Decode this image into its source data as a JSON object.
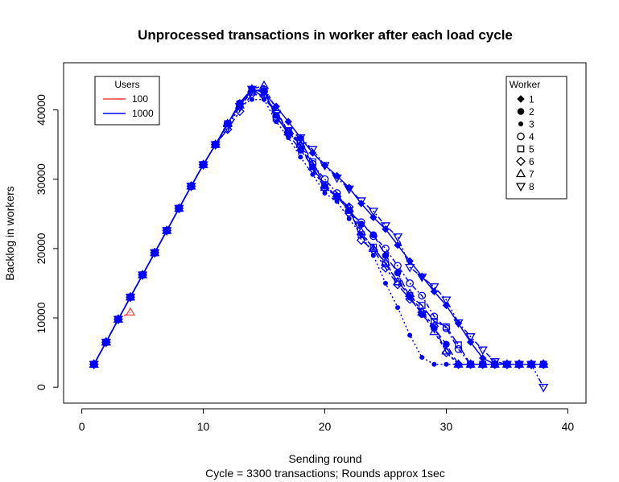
{
  "chart_data": {
    "type": "line",
    "title": "Unprocessed transactions in worker after each load cycle",
    "xlabel": "Sending round",
    "subtitle": "Cycle = 3300 transactions; Rounds approx 1sec",
    "ylabel": "Backlog in workers",
    "xlim": [
      0,
      40
    ],
    "ylim": [
      0,
      45000
    ],
    "x_ticks": [
      0,
      10,
      20,
      30,
      40
    ],
    "y_ticks": [
      0,
      10000,
      20000,
      30000,
      40000
    ],
    "grid": false,
    "legends": [
      {
        "title": "Users",
        "placement": "top-left",
        "items": [
          {
            "label": "100",
            "color": "#ff3b3b"
          },
          {
            "label": "1000",
            "color": "#0000ff"
          }
        ]
      },
      {
        "title": "Worker",
        "placement": "top-right",
        "items": [
          {
            "label": "1",
            "marker": "diamond-filled"
          },
          {
            "label": "2",
            "marker": "circle-filled-large"
          },
          {
            "label": "3",
            "marker": "circle-filled-small"
          },
          {
            "label": "4",
            "marker": "circle-open"
          },
          {
            "label": "5",
            "marker": "square-open"
          },
          {
            "label": "6",
            "marker": "diamond-open"
          },
          {
            "label": "7",
            "marker": "triangle-up-open"
          },
          {
            "label": "8",
            "marker": "triangle-down-open"
          }
        ]
      }
    ],
    "series": [
      {
        "users": "100",
        "worker": "7",
        "marker": "triangle-up-open",
        "color": "#ff3b3b",
        "x": [
          1,
          2,
          3,
          4
        ],
        "y": [
          3300,
          6500,
          9800,
          10800
        ]
      },
      {
        "users": "1000",
        "worker": "1",
        "marker": "diamond-filled",
        "color": "#0000ff",
        "x": [
          1,
          2,
          3,
          4,
          5,
          6,
          7,
          8,
          9,
          10,
          11,
          12,
          13,
          14,
          15,
          16,
          17,
          18,
          19,
          20,
          21,
          22,
          23,
          24,
          25,
          26,
          27,
          28,
          29,
          30,
          31,
          32,
          33,
          34,
          35,
          36,
          37,
          38
        ],
        "y": [
          3300,
          6500,
          9800,
          13000,
          16200,
          19400,
          22600,
          25800,
          29000,
          32100,
          35000,
          38000,
          41000,
          43000,
          42500,
          40500,
          38300,
          36000,
          33800,
          32000,
          30500,
          28800,
          26500,
          24500,
          22800,
          20500,
          18200,
          16000,
          13800,
          11800,
          9200,
          6500,
          4200,
          3300,
          3300,
          3300,
          3300,
          3300
        ]
      },
      {
        "users": "1000",
        "worker": "2",
        "marker": "circle-filled-large",
        "color": "#0000ff",
        "x": [
          1,
          2,
          3,
          4,
          5,
          6,
          7,
          8,
          9,
          10,
          11,
          12,
          13,
          14,
          15,
          16,
          17,
          18,
          19,
          20,
          21,
          22,
          23,
          24,
          25,
          26,
          27,
          28,
          29,
          30,
          31,
          32,
          33,
          34,
          35,
          36,
          37,
          38
        ],
        "y": [
          3300,
          6500,
          9800,
          13000,
          16200,
          19400,
          22600,
          25800,
          29000,
          32100,
          35000,
          38000,
          41000,
          43000,
          42600,
          39200,
          36500,
          34200,
          31800,
          29000,
          27500,
          25500,
          23500,
          22000,
          19000,
          16500,
          13000,
          10500,
          8500,
          6200,
          3300,
          3300,
          3300,
          3300,
          3300,
          3300,
          3300,
          3300
        ]
      },
      {
        "users": "1000",
        "worker": "3",
        "marker": "circle-filled-small",
        "color": "#0000ff",
        "x": [
          1,
          2,
          3,
          4,
          5,
          6,
          7,
          8,
          9,
          10,
          11,
          12,
          13,
          14,
          15,
          16,
          17,
          18,
          19,
          20,
          21,
          22,
          23,
          24,
          25,
          26,
          27,
          28,
          29,
          30,
          31,
          32,
          33,
          34,
          35,
          36,
          37,
          38
        ],
        "y": [
          3300,
          6500,
          9800,
          13000,
          16200,
          19400,
          22600,
          25800,
          29000,
          32100,
          35000,
          38000,
          40500,
          41500,
          41500,
          38300,
          36000,
          33200,
          30700,
          28000,
          26800,
          24300,
          22000,
          19000,
          15000,
          11500,
          7500,
          4300,
          3300,
          3300,
          3300,
          3300,
          3300,
          3300,
          3300,
          3300,
          3300,
          3300
        ]
      },
      {
        "users": "1000",
        "worker": "4",
        "marker": "circle-open",
        "color": "#0000ff",
        "x": [
          1,
          2,
          3,
          4,
          5,
          6,
          7,
          8,
          9,
          10,
          11,
          12,
          13,
          14,
          15,
          16,
          17,
          18,
          19,
          20,
          21,
          22,
          23,
          24,
          25,
          26,
          27,
          28,
          29,
          30,
          31,
          32,
          33,
          34,
          35,
          36,
          37,
          38
        ],
        "y": [
          3300,
          6500,
          9800,
          13000,
          16200,
          19400,
          22600,
          25800,
          29000,
          32100,
          35000,
          38000,
          40500,
          42600,
          42700,
          39000,
          36800,
          35200,
          32200,
          30000,
          28000,
          25200,
          23800,
          21800,
          20000,
          17500,
          15000,
          13200,
          10200,
          8500,
          5500,
          3300,
          3300,
          3300,
          3300,
          3300,
          3300,
          3300
        ]
      },
      {
        "users": "1000",
        "worker": "5",
        "marker": "square-open",
        "color": "#0000ff",
        "x": [
          1,
          2,
          3,
          4,
          5,
          6,
          7,
          8,
          9,
          10,
          11,
          12,
          13,
          14,
          15,
          16,
          17,
          18,
          19,
          20,
          21,
          22,
          23,
          24,
          25,
          26,
          27,
          28,
          29,
          30,
          31,
          32,
          33,
          34,
          35,
          36,
          37,
          38
        ],
        "y": [
          3300,
          6500,
          9800,
          13000,
          16200,
          19400,
          22600,
          25800,
          29000,
          32100,
          35000,
          38000,
          40800,
          42800,
          42900,
          38800,
          37000,
          35500,
          32500,
          29200,
          27500,
          25500,
          22000,
          20200,
          17800,
          15200,
          13200,
          11800,
          9500,
          8700,
          6100,
          3300,
          3300,
          3300,
          3300,
          3300,
          3300,
          3300
        ]
      },
      {
        "users": "1000",
        "worker": "6",
        "marker": "diamond-open",
        "color": "#0000ff",
        "x": [
          1,
          2,
          3,
          4,
          5,
          6,
          7,
          8,
          9,
          10,
          11,
          12,
          13,
          14,
          15,
          16,
          17,
          18,
          19,
          20,
          21,
          22,
          23,
          24,
          25,
          26,
          27,
          28,
          29,
          30,
          31,
          32,
          33,
          34,
          35,
          36,
          37,
          38
        ],
        "y": [
          3300,
          6500,
          9800,
          13000,
          16200,
          19400,
          22600,
          25800,
          29000,
          32100,
          35000,
          37200,
          39800,
          42300,
          42000,
          39800,
          36800,
          34800,
          31500,
          28700,
          27500,
          26000,
          21200,
          19800,
          17200,
          14800,
          12700,
          10800,
          8800,
          5000,
          3300,
          3300,
          3300,
          3300,
          3300,
          3300,
          3300,
          3300
        ]
      },
      {
        "users": "1000",
        "worker": "7",
        "marker": "triangle-up-open",
        "color": "#0000ff",
        "x": [
          1,
          2,
          3,
          4,
          5,
          6,
          7,
          8,
          9,
          10,
          11,
          12,
          13,
          14,
          15,
          16,
          17,
          18,
          19,
          20,
          21,
          22,
          23,
          24,
          25,
          26,
          27,
          28,
          29,
          30,
          31,
          32,
          33,
          34,
          35,
          36,
          37,
          38
        ],
        "y": [
          3300,
          6500,
          9800,
          13000,
          16200,
          19400,
          22600,
          25800,
          29000,
          32100,
          35000,
          38000,
          40700,
          43000,
          43500,
          40000,
          36800,
          35000,
          31800,
          28800,
          27500,
          25800,
          22400,
          20000,
          18000,
          15200,
          13500,
          10800,
          8000,
          5200,
          3300,
          3300,
          3300,
          3300,
          3300,
          3300,
          3300,
          3300
        ]
      },
      {
        "users": "1000",
        "worker": "8",
        "marker": "triangle-down-open",
        "color": "#0000ff",
        "x": [
          1,
          2,
          3,
          4,
          5,
          6,
          7,
          8,
          9,
          10,
          11,
          12,
          13,
          14,
          15,
          16,
          17,
          18,
          19,
          20,
          21,
          22,
          23,
          24,
          25,
          26,
          27,
          28,
          29,
          30,
          31,
          32,
          33,
          34,
          35,
          36,
          37,
          38
        ],
        "y": [
          3300,
          6500,
          9800,
          13000,
          16200,
          19400,
          22600,
          25800,
          29000,
          32100,
          35000,
          37400,
          40500,
          43000,
          41800,
          39500,
          37000,
          36000,
          34300,
          32000,
          30200,
          28600,
          26900,
          25400,
          23300,
          21700,
          17300,
          15900,
          14500,
          12600,
          9300,
          7300,
          5400,
          3700,
          3300,
          3300,
          3300,
          0
        ]
      }
    ]
  }
}
